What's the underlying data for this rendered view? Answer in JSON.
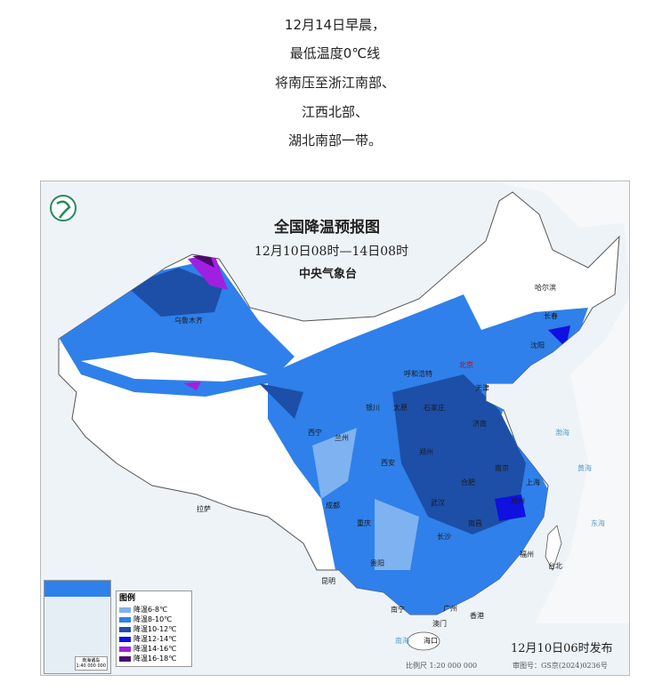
{
  "caption": [
    "12月14日早晨，",
    "最低温度0℃线",
    "将南压至浙江南部、",
    "江西北部、",
    "湖北南部一带。"
  ],
  "map": {
    "title": "全国降温预报图",
    "period": "12月10日08时—14日08时",
    "agency": "中央气象台",
    "issued": "12月10日06时发布",
    "scale": "比例尺 1:20 000 000",
    "approval": "审图号：GS京(2024)0236号",
    "inset_label": "南海诸岛",
    "inset_scale": "1:40 000 000",
    "legend": {
      "title": "图例",
      "items": [
        {
          "label": "降温6-8℃",
          "color": "#7fb2f0"
        },
        {
          "label": "降温8-10℃",
          "color": "#2f80ea"
        },
        {
          "label": "降温10-12℃",
          "color": "#1d4fa8"
        },
        {
          "label": "降温12-14℃",
          "color": "#1010e0"
        },
        {
          "label": "降温14-16℃",
          "color": "#a020e0"
        },
        {
          "label": "降温16-18℃",
          "color": "#4a0a6a"
        }
      ]
    },
    "cities": [
      {
        "name": "乌鲁木齐"
      },
      {
        "name": "哈尔滨"
      },
      {
        "name": "长春"
      },
      {
        "name": "沈阳"
      },
      {
        "name": "北京"
      },
      {
        "name": "天津"
      },
      {
        "name": "呼和浩特"
      },
      {
        "name": "石家庄"
      },
      {
        "name": "太原"
      },
      {
        "name": "济南"
      },
      {
        "name": "银川"
      },
      {
        "name": "西宁"
      },
      {
        "name": "兰州"
      },
      {
        "name": "郑州"
      },
      {
        "name": "西安"
      },
      {
        "name": "合肥"
      },
      {
        "name": "南京"
      },
      {
        "name": "上海"
      },
      {
        "name": "杭州"
      },
      {
        "name": "武汉"
      },
      {
        "name": "南昌"
      },
      {
        "name": "长沙"
      },
      {
        "name": "成都"
      },
      {
        "name": "重庆"
      },
      {
        "name": "贵阳"
      },
      {
        "name": "拉萨"
      },
      {
        "name": "昆明"
      },
      {
        "name": "南宁"
      },
      {
        "name": "广州"
      },
      {
        "name": "澳门"
      },
      {
        "name": "香港"
      },
      {
        "name": "福州"
      },
      {
        "name": "台北"
      },
      {
        "name": "海口"
      }
    ],
    "seas": [
      "渤海",
      "黄海",
      "东海",
      "南海"
    ]
  }
}
